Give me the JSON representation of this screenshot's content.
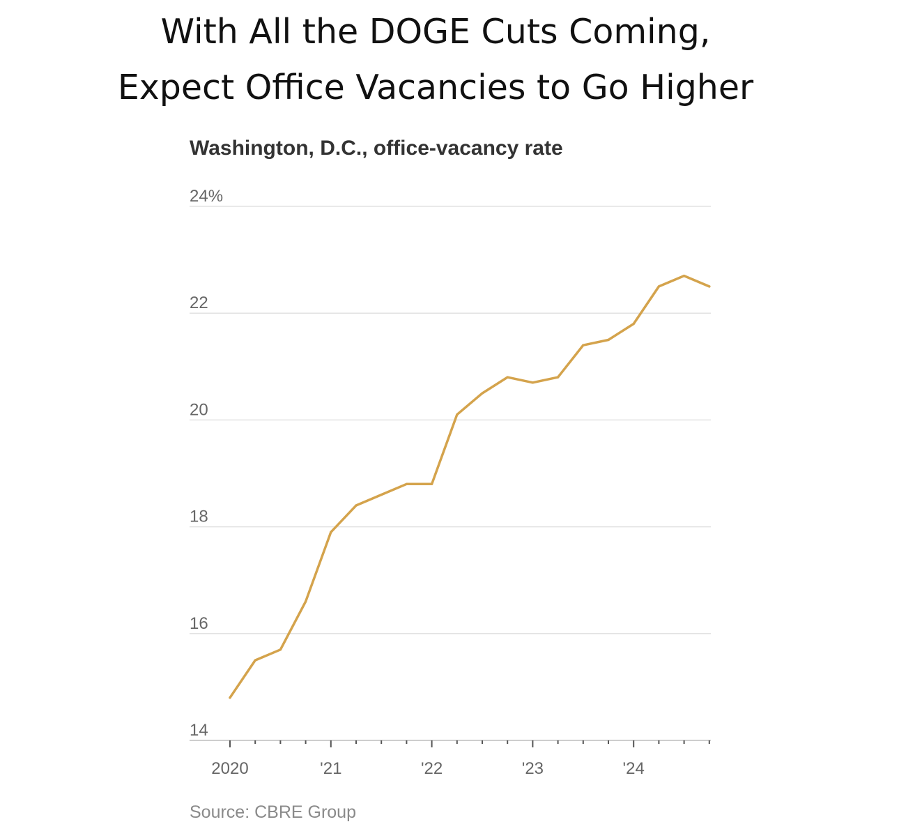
{
  "headline": {
    "line1": "With All the DOGE Cuts Coming,",
    "line2": "Expect Office Vacancies to Go Higher"
  },
  "chart_data": {
    "type": "line",
    "title": "Washington, D.C., office-vacancy rate",
    "source": "Source: CBRE Group",
    "color": "#d4a34c",
    "ylim": [
      14,
      24
    ],
    "yticks": [
      {
        "value": 24,
        "label": "24%"
      },
      {
        "value": 22,
        "label": "22"
      },
      {
        "value": 20,
        "label": "20"
      },
      {
        "value": 18,
        "label": "18"
      },
      {
        "value": 16,
        "label": "16"
      },
      {
        "value": 14,
        "label": "14"
      }
    ],
    "xticks": [
      {
        "value": "2020 Q1",
        "label": "2020"
      },
      {
        "value": "2021 Q1",
        "label": "'21"
      },
      {
        "value": "2022 Q1",
        "label": "'22"
      },
      {
        "value": "2023 Q1",
        "label": "'23"
      },
      {
        "value": "2024 Q1",
        "label": "'24"
      }
    ],
    "grid": true,
    "x": [
      "2020 Q1",
      "2020 Q2",
      "2020 Q3",
      "2020 Q4",
      "2021 Q1",
      "2021 Q2",
      "2021 Q3",
      "2021 Q4",
      "2022 Q1",
      "2022 Q2",
      "2022 Q3",
      "2022 Q4",
      "2023 Q1",
      "2023 Q2",
      "2023 Q3",
      "2023 Q4",
      "2024 Q1",
      "2024 Q2",
      "2024 Q3",
      "2024 Q4"
    ],
    "values": [
      14.8,
      15.5,
      15.7,
      16.6,
      17.9,
      18.4,
      18.6,
      18.8,
      18.8,
      20.1,
      20.5,
      20.8,
      20.7,
      20.8,
      21.4,
      21.5,
      21.8,
      22.5,
      22.7,
      22.5
    ]
  }
}
